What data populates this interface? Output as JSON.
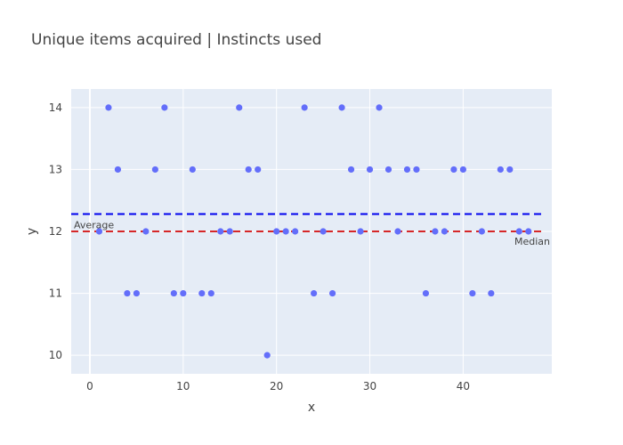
{
  "chart_data": {
    "type": "scatter",
    "title": "Unique items acquired | Instincts used",
    "xlabel": "x",
    "ylabel": "y",
    "xlim": [
      -2,
      49.5
    ],
    "ylim": [
      9.7,
      14.3
    ],
    "xticks": [
      0,
      10,
      20,
      30,
      40
    ],
    "yticks": [
      10,
      11,
      12,
      13,
      14
    ],
    "grid": true,
    "series": [
      {
        "marker_color": "#636efa",
        "x": [
          1,
          2,
          3,
          4,
          5,
          6,
          7,
          8,
          9,
          10,
          11,
          12,
          13,
          14,
          15,
          16,
          17,
          18,
          19,
          20,
          21,
          22,
          23,
          24,
          25,
          26,
          27,
          28,
          29,
          30,
          31,
          32,
          33,
          34,
          35,
          36,
          37,
          38,
          39,
          40,
          41,
          42,
          43,
          44,
          45,
          46,
          47
        ],
        "y": [
          12,
          14,
          13,
          11,
          11,
          12,
          13,
          14,
          11,
          11,
          13,
          11,
          11,
          12,
          12,
          14,
          13,
          13,
          10,
          12,
          12,
          12,
          14,
          11,
          12,
          11,
          14,
          13,
          12,
          13,
          14,
          13,
          12,
          13,
          13,
          11,
          12,
          12,
          13,
          13,
          11,
          12,
          11,
          13,
          13,
          12,
          12
        ]
      }
    ],
    "reference_lines": [
      {
        "label": "Average",
        "y": 12.28,
        "color": "#0000ee",
        "dash": "dash"
      },
      {
        "label": "Median",
        "y": 12,
        "color": "#d62728",
        "dash": "dash"
      }
    ]
  }
}
